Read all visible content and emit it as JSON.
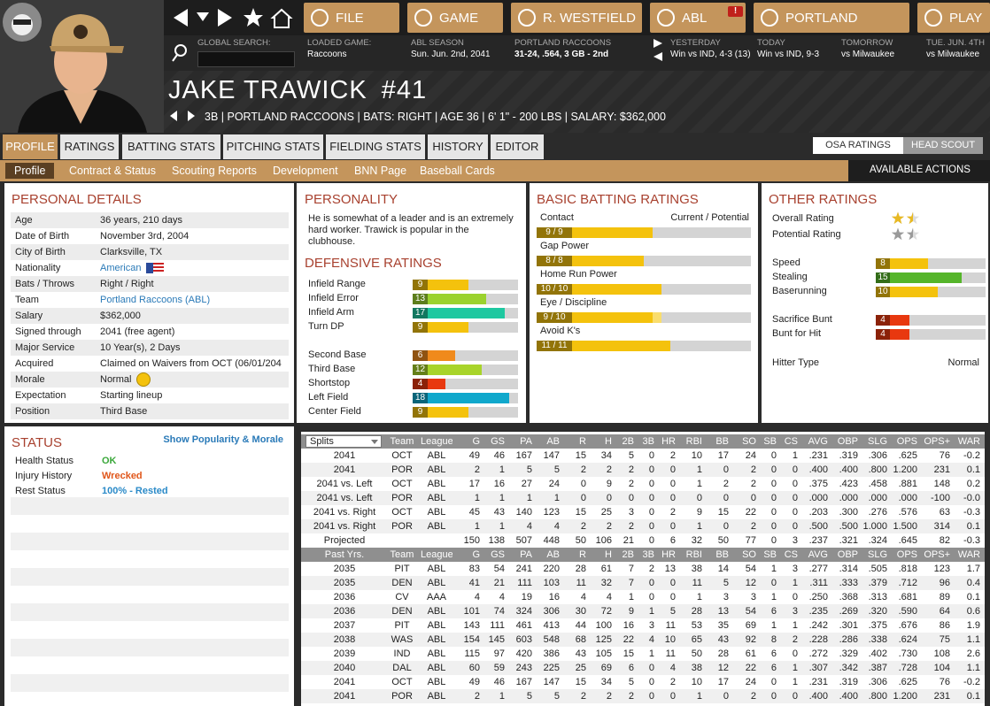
{
  "nav": {
    "buttons": [
      "FILE",
      "GAME",
      "R. WESTFIELD",
      "ABL",
      "PORTLAND",
      "PLAY"
    ],
    "alert": "!",
    "search_label": "GLOBAL SEARCH:",
    "info": [
      {
        "label": "LOADED GAME:",
        "value": "Raccoons"
      },
      {
        "label": "ABL SEASON",
        "value": "Sun. Jun. 2nd, 2041"
      },
      {
        "label": "PORTLAND RACCOONS",
        "value": "31-24, .564, 3 GB - 2nd"
      },
      {
        "label": "YESTERDAY",
        "value": "Win vs IND, 4-3 (13)"
      },
      {
        "label": "TODAY",
        "value": "Win vs IND, 9-3"
      },
      {
        "label": "TOMORROW",
        "value": "vs Milwaukee"
      },
      {
        "label": "TUE. JUN. 4TH",
        "value": "vs Milwaukee"
      }
    ]
  },
  "player": {
    "name": "JAKE TRAWICK",
    "number": "#41",
    "info": "3B | PORTLAND RACCOONS | BATS: RIGHT | AGE 36 | 6' 1\" - 200 LBS | SALARY: $362,000"
  },
  "tabs": [
    "PROFILE",
    "RATINGS",
    "BATTING STATS",
    "PITCHING STATS",
    "FIELDING STATS",
    "HISTORY",
    "EDITOR"
  ],
  "scout_toggle": [
    "OSA RATINGS",
    "HEAD SCOUT"
  ],
  "subtabs": [
    "Profile",
    "Contract & Status",
    "Scouting Reports",
    "Development",
    "BNN Page",
    "Baseball Cards"
  ],
  "actions": "AVAILABLE ACTIONS",
  "personal_details": {
    "title": "PERSONAL DETAILS",
    "rows": [
      [
        "Age",
        "36 years, 210 days"
      ],
      [
        "Date of Birth",
        "November 3rd, 2004"
      ],
      [
        "City of Birth",
        "Clarksville, TX"
      ],
      [
        "Nationality",
        "American"
      ],
      [
        "Bats / Throws",
        "Right / Right"
      ],
      [
        "Team",
        "Portland Raccoons (ABL)"
      ],
      [
        "Salary",
        "$362,000"
      ],
      [
        "Signed through",
        "2041 (free agent)"
      ],
      [
        "Major Service",
        "10 Year(s), 2 Days"
      ],
      [
        "Acquired",
        "Claimed on Waivers from OCT (06/01/204"
      ],
      [
        "Morale",
        "Normal"
      ],
      [
        "Expectation",
        "Starting lineup"
      ],
      [
        "Position",
        "Third Base"
      ]
    ]
  },
  "personality": {
    "title": "PERSONALITY",
    "text": "He is somewhat of a leader and is an extremely hard worker. Trawick is popular in the clubhouse."
  },
  "defensive_ratings": {
    "title": "DEFENSIVE RATINGS",
    "xlim": [
      0,
      20
    ],
    "groups": [
      [
        {
          "name": "Infield Range",
          "value": 9,
          "color": "#f4c20d"
        },
        {
          "name": "Infield Error",
          "value": 13,
          "color": "#9bd22e"
        },
        {
          "name": "Infield Arm",
          "value": 17,
          "color": "#1ec8a0"
        },
        {
          "name": "Turn DP",
          "value": 9,
          "color": "#f4c20d"
        }
      ],
      [
        {
          "name": "Second Base",
          "value": 6,
          "color": "#f08a1c"
        },
        {
          "name": "Third Base",
          "value": 12,
          "color": "#a8d42a"
        },
        {
          "name": "Shortstop",
          "value": 4,
          "color": "#e8380f"
        },
        {
          "name": "Left Field",
          "value": 18,
          "color": "#10a8cc"
        },
        {
          "name": "Center Field",
          "value": 9,
          "color": "#f4c20d"
        }
      ]
    ]
  },
  "basic_batting": {
    "title": "BASIC BATTING RATINGS",
    "header": "Current / Potential",
    "xlim": [
      0,
      20
    ],
    "color": "#f4c20d",
    "potential_color": "#f9dd6e",
    "ratings": [
      {
        "name": "Contact",
        "current": 9,
        "potential": 9,
        "label": "9 / 9"
      },
      {
        "name": "Gap Power",
        "current": 8,
        "potential": 8,
        "label": "8 / 8"
      },
      {
        "name": "Home Run Power",
        "current": 10,
        "potential": 10,
        "label": "10 / 10"
      },
      {
        "name": "Eye / Discipline",
        "current": 9,
        "potential": 10,
        "label": "9 / 10"
      },
      {
        "name": "Avoid K's",
        "current": 11,
        "potential": 11,
        "label": "11 / 11"
      }
    ]
  },
  "other_ratings": {
    "title": "OTHER RATINGS",
    "stars": [
      {
        "name": "Overall Rating",
        "value": 1.5,
        "color": "#e8b923"
      },
      {
        "name": "Potential Rating",
        "value": 1.5,
        "color": "#9a9a9a"
      }
    ],
    "xlim": [
      0,
      20
    ],
    "groups": [
      [
        {
          "name": "Speed",
          "value": 8,
          "color": "#f4c20d"
        },
        {
          "name": "Stealing",
          "value": 15,
          "color": "#55b52a"
        },
        {
          "name": "Baserunning",
          "value": 10,
          "color": "#f4c20d"
        }
      ],
      [
        {
          "name": "Sacrifice Bunt",
          "value": 4,
          "color": "#e8380f"
        },
        {
          "name": "Bunt for Hit",
          "value": 4,
          "color": "#e8380f"
        }
      ]
    ],
    "hitter_type": [
      "Hitter Type",
      "Normal"
    ]
  },
  "status": {
    "title": "STATUS",
    "link": "Show Popularity & Morale",
    "rows": [
      {
        "label": "Health Status",
        "value": "OK",
        "color": "#3aa83a"
      },
      {
        "label": "Injury History",
        "value": "Wrecked",
        "color": "#e0561a"
      },
      {
        "label": "Rest Status",
        "value": "100% - Rested",
        "color": "#2a8ac8"
      }
    ]
  },
  "stats": {
    "columns": [
      "Splits",
      "Team",
      "League",
      "G",
      "GS",
      "PA",
      "AB",
      "R",
      "H",
      "2B",
      "3B",
      "HR",
      "RBI",
      "BB",
      "SO",
      "SB",
      "CS",
      "AVG",
      "OBP",
      "SLG",
      "OPS",
      "OPS+",
      "WAR"
    ],
    "rows": [
      [
        "2041",
        "OCT",
        "ABL",
        "49",
        "46",
        "167",
        "147",
        "15",
        "34",
        "5",
        "0",
        "2",
        "10",
        "17",
        "24",
        "0",
        "1",
        ".231",
        ".319",
        ".306",
        ".625",
        "76",
        "-0.2"
      ],
      [
        "2041",
        "POR",
        "ABL",
        "2",
        "1",
        "5",
        "5",
        "2",
        "2",
        "2",
        "0",
        "0",
        "1",
        "0",
        "2",
        "0",
        "0",
        ".400",
        ".400",
        ".800",
        "1.200",
        "231",
        "0.1"
      ],
      [
        "2041 vs. Left",
        "OCT",
        "ABL",
        "17",
        "16",
        "27",
        "24",
        "0",
        "9",
        "2",
        "0",
        "0",
        "1",
        "2",
        "2",
        "0",
        "0",
        ".375",
        ".423",
        ".458",
        ".881",
        "148",
        "0.2"
      ],
      [
        "2041 vs. Left",
        "POR",
        "ABL",
        "1",
        "1",
        "1",
        "1",
        "0",
        "0",
        "0",
        "0",
        "0",
        "0",
        "0",
        "0",
        "0",
        "0",
        ".000",
        ".000",
        ".000",
        ".000",
        "-100",
        "-0.0"
      ],
      [
        "2041 vs. Right",
        "OCT",
        "ABL",
        "45",
        "43",
        "140",
        "123",
        "15",
        "25",
        "3",
        "0",
        "2",
        "9",
        "15",
        "22",
        "0",
        "0",
        ".203",
        ".300",
        ".276",
        ".576",
        "63",
        "-0.3"
      ],
      [
        "2041 vs. Right",
        "POR",
        "ABL",
        "1",
        "1",
        "4",
        "4",
        "2",
        "2",
        "2",
        "0",
        "0",
        "1",
        "0",
        "2",
        "0",
        "0",
        ".500",
        ".500",
        "1.000",
        "1.500",
        "314",
        "0.1"
      ],
      [
        "Projected",
        null,
        null,
        "150",
        "138",
        "507",
        "448",
        "50",
        "106",
        "21",
        "0",
        "6",
        "32",
        "50",
        "77",
        "0",
        "3",
        ".237",
        ".321",
        ".324",
        ".645",
        "82",
        "-0.3"
      ]
    ],
    "past_columns": [
      "Past Yrs.",
      "Team",
      "League",
      "G",
      "GS",
      "PA",
      "AB",
      "R",
      "H",
      "2B",
      "3B",
      "HR",
      "RBI",
      "BB",
      "SO",
      "SB",
      "CS",
      "AVG",
      "OBP",
      "SLG",
      "OPS",
      "OPS+",
      "WAR"
    ],
    "past_rows": [
      [
        "2035",
        "PIT",
        "ABL",
        "83",
        "54",
        "241",
        "220",
        "28",
        "61",
        "7",
        "2",
        "13",
        "38",
        "14",
        "54",
        "1",
        "3",
        ".277",
        ".314",
        ".505",
        ".818",
        "123",
        "1.7"
      ],
      [
        "2035",
        "DEN",
        "ABL",
        "41",
        "21",
        "111",
        "103",
        "11",
        "32",
        "7",
        "0",
        "0",
        "11",
        "5",
        "12",
        "0",
        "1",
        ".311",
        ".333",
        ".379",
        ".712",
        "96",
        "0.4"
      ],
      [
        "2036",
        "CV",
        "AAA",
        "4",
        "4",
        "19",
        "16",
        "4",
        "4",
        "1",
        "0",
        "0",
        "1",
        "3",
        "3",
        "1",
        "0",
        ".250",
        ".368",
        ".313",
        ".681",
        "89",
        "0.1"
      ],
      [
        "2036",
        "DEN",
        "ABL",
        "101",
        "74",
        "324",
        "306",
        "30",
        "72",
        "9",
        "1",
        "5",
        "28",
        "13",
        "54",
        "6",
        "3",
        ".235",
        ".269",
        ".320",
        ".590",
        "64",
        "0.6"
      ],
      [
        "2037",
        "PIT",
        "ABL",
        "143",
        "111",
        "461",
        "413",
        "44",
        "100",
        "16",
        "3",
        "11",
        "53",
        "35",
        "69",
        "1",
        "1",
        ".242",
        ".301",
        ".375",
        ".676",
        "86",
        "1.9"
      ],
      [
        "2038",
        "WAS",
        "ABL",
        "154",
        "145",
        "603",
        "548",
        "68",
        "125",
        "22",
        "4",
        "10",
        "65",
        "43",
        "92",
        "8",
        "2",
        ".228",
        ".286",
        ".338",
        ".624",
        "75",
        "1.1"
      ],
      [
        "2039",
        "IND",
        "ABL",
        "115",
        "97",
        "420",
        "386",
        "43",
        "105",
        "15",
        "1",
        "11",
        "50",
        "28",
        "61",
        "6",
        "0",
        ".272",
        ".329",
        ".402",
        ".730",
        "108",
        "2.6"
      ],
      [
        "2040",
        "DAL",
        "ABL",
        "60",
        "59",
        "243",
        "225",
        "25",
        "69",
        "6",
        "0",
        "4",
        "38",
        "12",
        "22",
        "6",
        "1",
        ".307",
        ".342",
        ".387",
        ".728",
        "104",
        "1.1"
      ],
      [
        "2041",
        "OCT",
        "ABL",
        "49",
        "46",
        "167",
        "147",
        "15",
        "34",
        "5",
        "0",
        "2",
        "10",
        "17",
        "24",
        "0",
        "1",
        ".231",
        ".319",
        ".306",
        ".625",
        "76",
        "-0.2"
      ],
      [
        "2041",
        "POR",
        "ABL",
        "2",
        "1",
        "5",
        "5",
        "2",
        "2",
        "2",
        "0",
        "0",
        "1",
        "0",
        "2",
        "0",
        "0",
        ".400",
        ".400",
        ".800",
        "1.200",
        "231",
        "0.1"
      ]
    ]
  }
}
